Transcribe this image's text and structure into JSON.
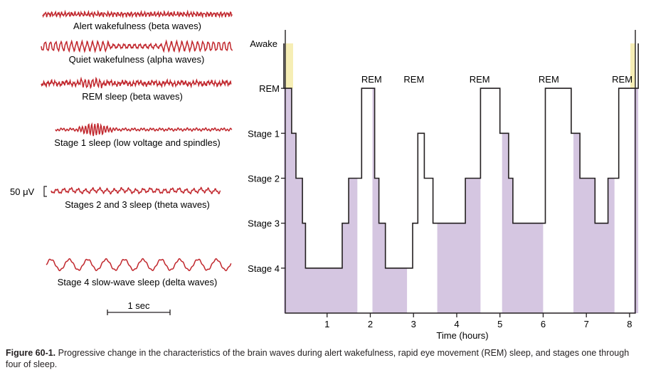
{
  "colors": {
    "wave": "#c1272d",
    "fill": "#d5c6e1",
    "awake": "#f6eeb5",
    "line": "#231f20"
  },
  "eeg": {
    "traces": [
      {
        "label": "Alert wakefulness (beta waves)"
      },
      {
        "label": "Quiet wakefulness (alpha waves)"
      },
      {
        "label": "REM sleep (beta waves)"
      },
      {
        "label": "Stage 1 sleep (low voltage and spindles)"
      },
      {
        "label": "Stages 2 and 3 sleep (theta waves)"
      },
      {
        "label": "Stage 4 slow-wave sleep (delta waves)"
      }
    ],
    "voltage_scale": "50 μV",
    "time_scale": "1 sec"
  },
  "chart_data": {
    "type": "line",
    "y_levels": [
      "Awake",
      "REM",
      "Stage 1",
      "Stage 2",
      "Stage 3",
      "Stage 4"
    ],
    "y_values": {
      "Awake": 6,
      "REM": 5,
      "Stage 1": 4,
      "Stage 2": 3,
      "Stage 3": 2,
      "Stage 4": 1
    },
    "x_ticks": [
      1,
      2,
      3,
      4,
      5,
      6,
      7,
      8
    ],
    "xlabel": "Time (hours)",
    "xlim": [
      0,
      8.1
    ],
    "ylim": [
      0,
      6.3
    ],
    "steps": [
      [
        0.0,
        6
      ],
      [
        0.0,
        5
      ],
      [
        0.18,
        4
      ],
      [
        0.28,
        3
      ],
      [
        0.43,
        2
      ],
      [
        0.5,
        1
      ],
      [
        1.2,
        1
      ],
      [
        1.35,
        2
      ],
      [
        1.5,
        3
      ],
      [
        1.8,
        5
      ],
      [
        2.1,
        3
      ],
      [
        2.2,
        2
      ],
      [
        2.35,
        1
      ],
      [
        2.9,
        1
      ],
      [
        2.98,
        2
      ],
      [
        3.1,
        4
      ],
      [
        3.25,
        3
      ],
      [
        3.45,
        2
      ],
      [
        3.8,
        2
      ],
      [
        4.2,
        3
      ],
      [
        4.55,
        5
      ],
      [
        5.0,
        4
      ],
      [
        5.2,
        3
      ],
      [
        5.3,
        2
      ],
      [
        5.85,
        2
      ],
      [
        6.05,
        5
      ],
      [
        6.65,
        4
      ],
      [
        6.85,
        3
      ],
      [
        7.2,
        2
      ],
      [
        7.5,
        3
      ],
      [
        7.7,
        3
      ],
      [
        7.75,
        5
      ],
      [
        8.2,
        6
      ]
    ],
    "rem_labels": [
      {
        "text": "REM",
        "x": 1.8
      },
      {
        "text": "REM",
        "x": 2.78
      },
      {
        "text": "REM",
        "x": 4.3
      },
      {
        "text": "REM",
        "x": 5.9
      },
      {
        "text": "REM",
        "x": 7.6
      }
    ],
    "sleep_shading": [
      [
        0.0,
        1.7
      ],
      [
        2.05,
        2.85
      ],
      [
        3.55,
        4.55
      ],
      [
        5.05,
        6.0
      ],
      [
        6.7,
        7.65
      ],
      [
        8.1,
        8.2
      ]
    ]
  },
  "caption": {
    "figure_number": "Figure 60-1.",
    "text": "Progressive change in the characteristics of the brain waves during alert wakefulness, rapid eye movement (REM) sleep, and stages one through four of sleep."
  }
}
